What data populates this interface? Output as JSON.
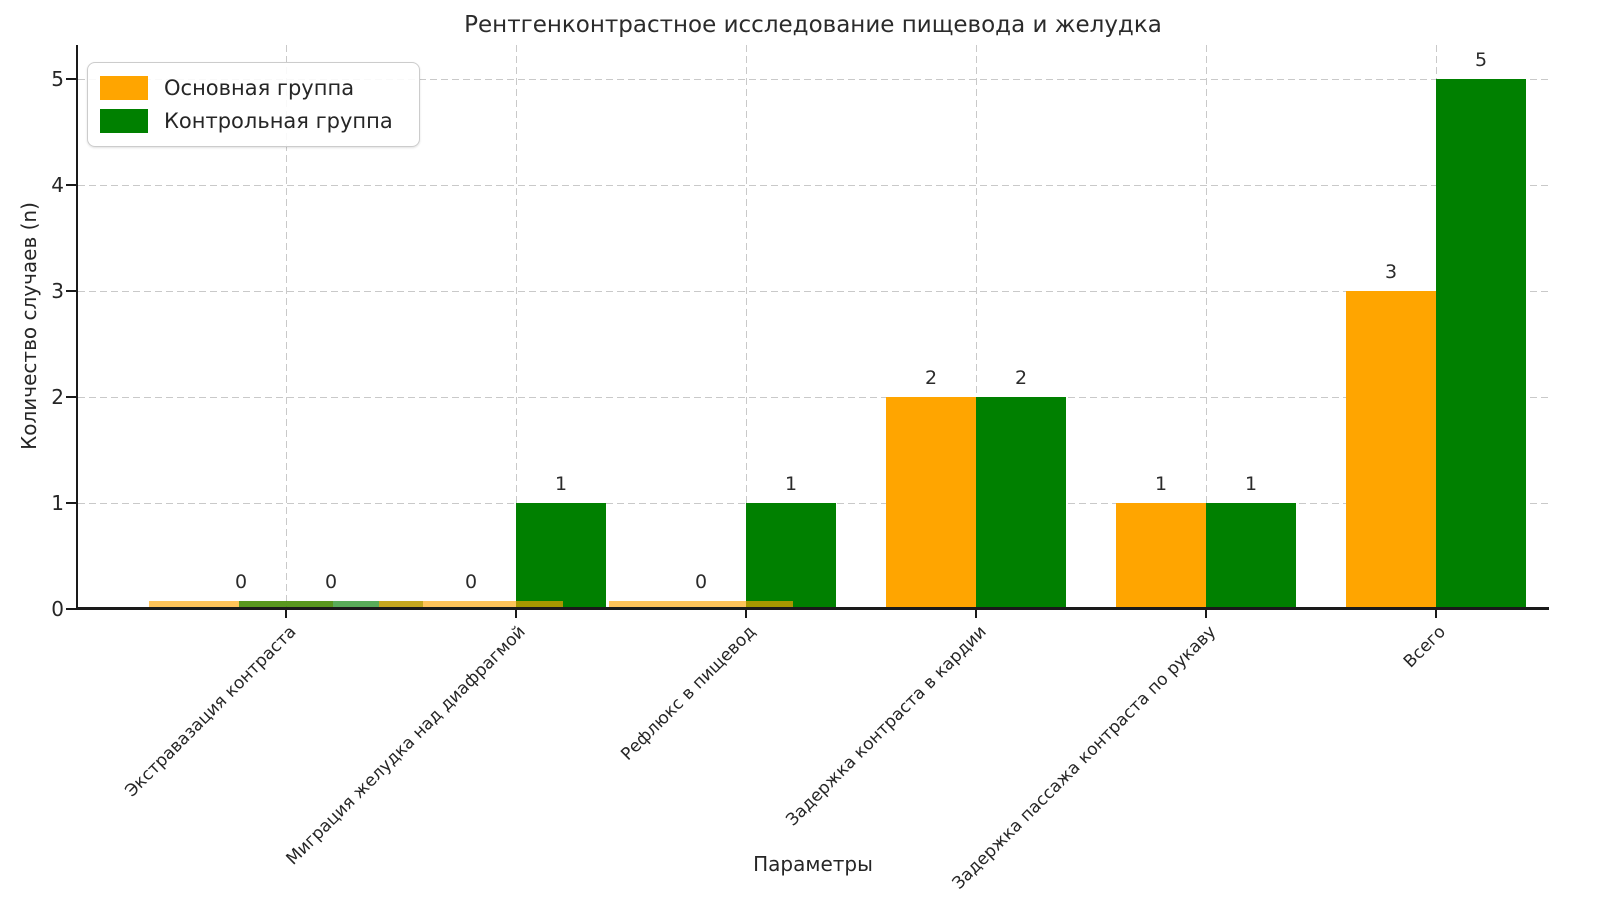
{
  "chart_data": {
    "type": "bar",
    "title": "Рентгенконтрастное исследование пищевода и желудка",
    "xlabel": "Параметры",
    "ylabel": "Количество случаев (n)",
    "categories": [
      "Экстравазация контраста",
      "Миграция желудка над диафрагмой",
      "Рефлюкс в пищевод",
      "Задержка контраста в кардии",
      "Задержка пассажа контраста по рукаву",
      "Всего"
    ],
    "series": [
      {
        "name": "Основная группа",
        "color": "#FFA500",
        "values": [
          0,
          0,
          0,
          2,
          1,
          3
        ]
      },
      {
        "name": "Контрольная группа",
        "color": "#008000",
        "values": [
          0,
          1,
          1,
          2,
          1,
          5
        ]
      }
    ],
    "bar_value_labels": [
      [
        "0",
        "0",
        "0",
        "2",
        "1",
        "3"
      ],
      [
        "0",
        "1",
        "1",
        "2",
        "1",
        "5"
      ]
    ],
    "yticks": [
      "0",
      "1",
      "2",
      "3",
      "4",
      "5"
    ],
    "ylim": [
      0,
      5.3
    ],
    "grid": {
      "style": "dashed",
      "color": "#c9c9c9",
      "horizontal": true,
      "vertical": true
    },
    "legend_position": "upper left",
    "zero_bar_alpha": 0.65,
    "axis_color": "#1a1a1a",
    "text_color": "#262626"
  }
}
